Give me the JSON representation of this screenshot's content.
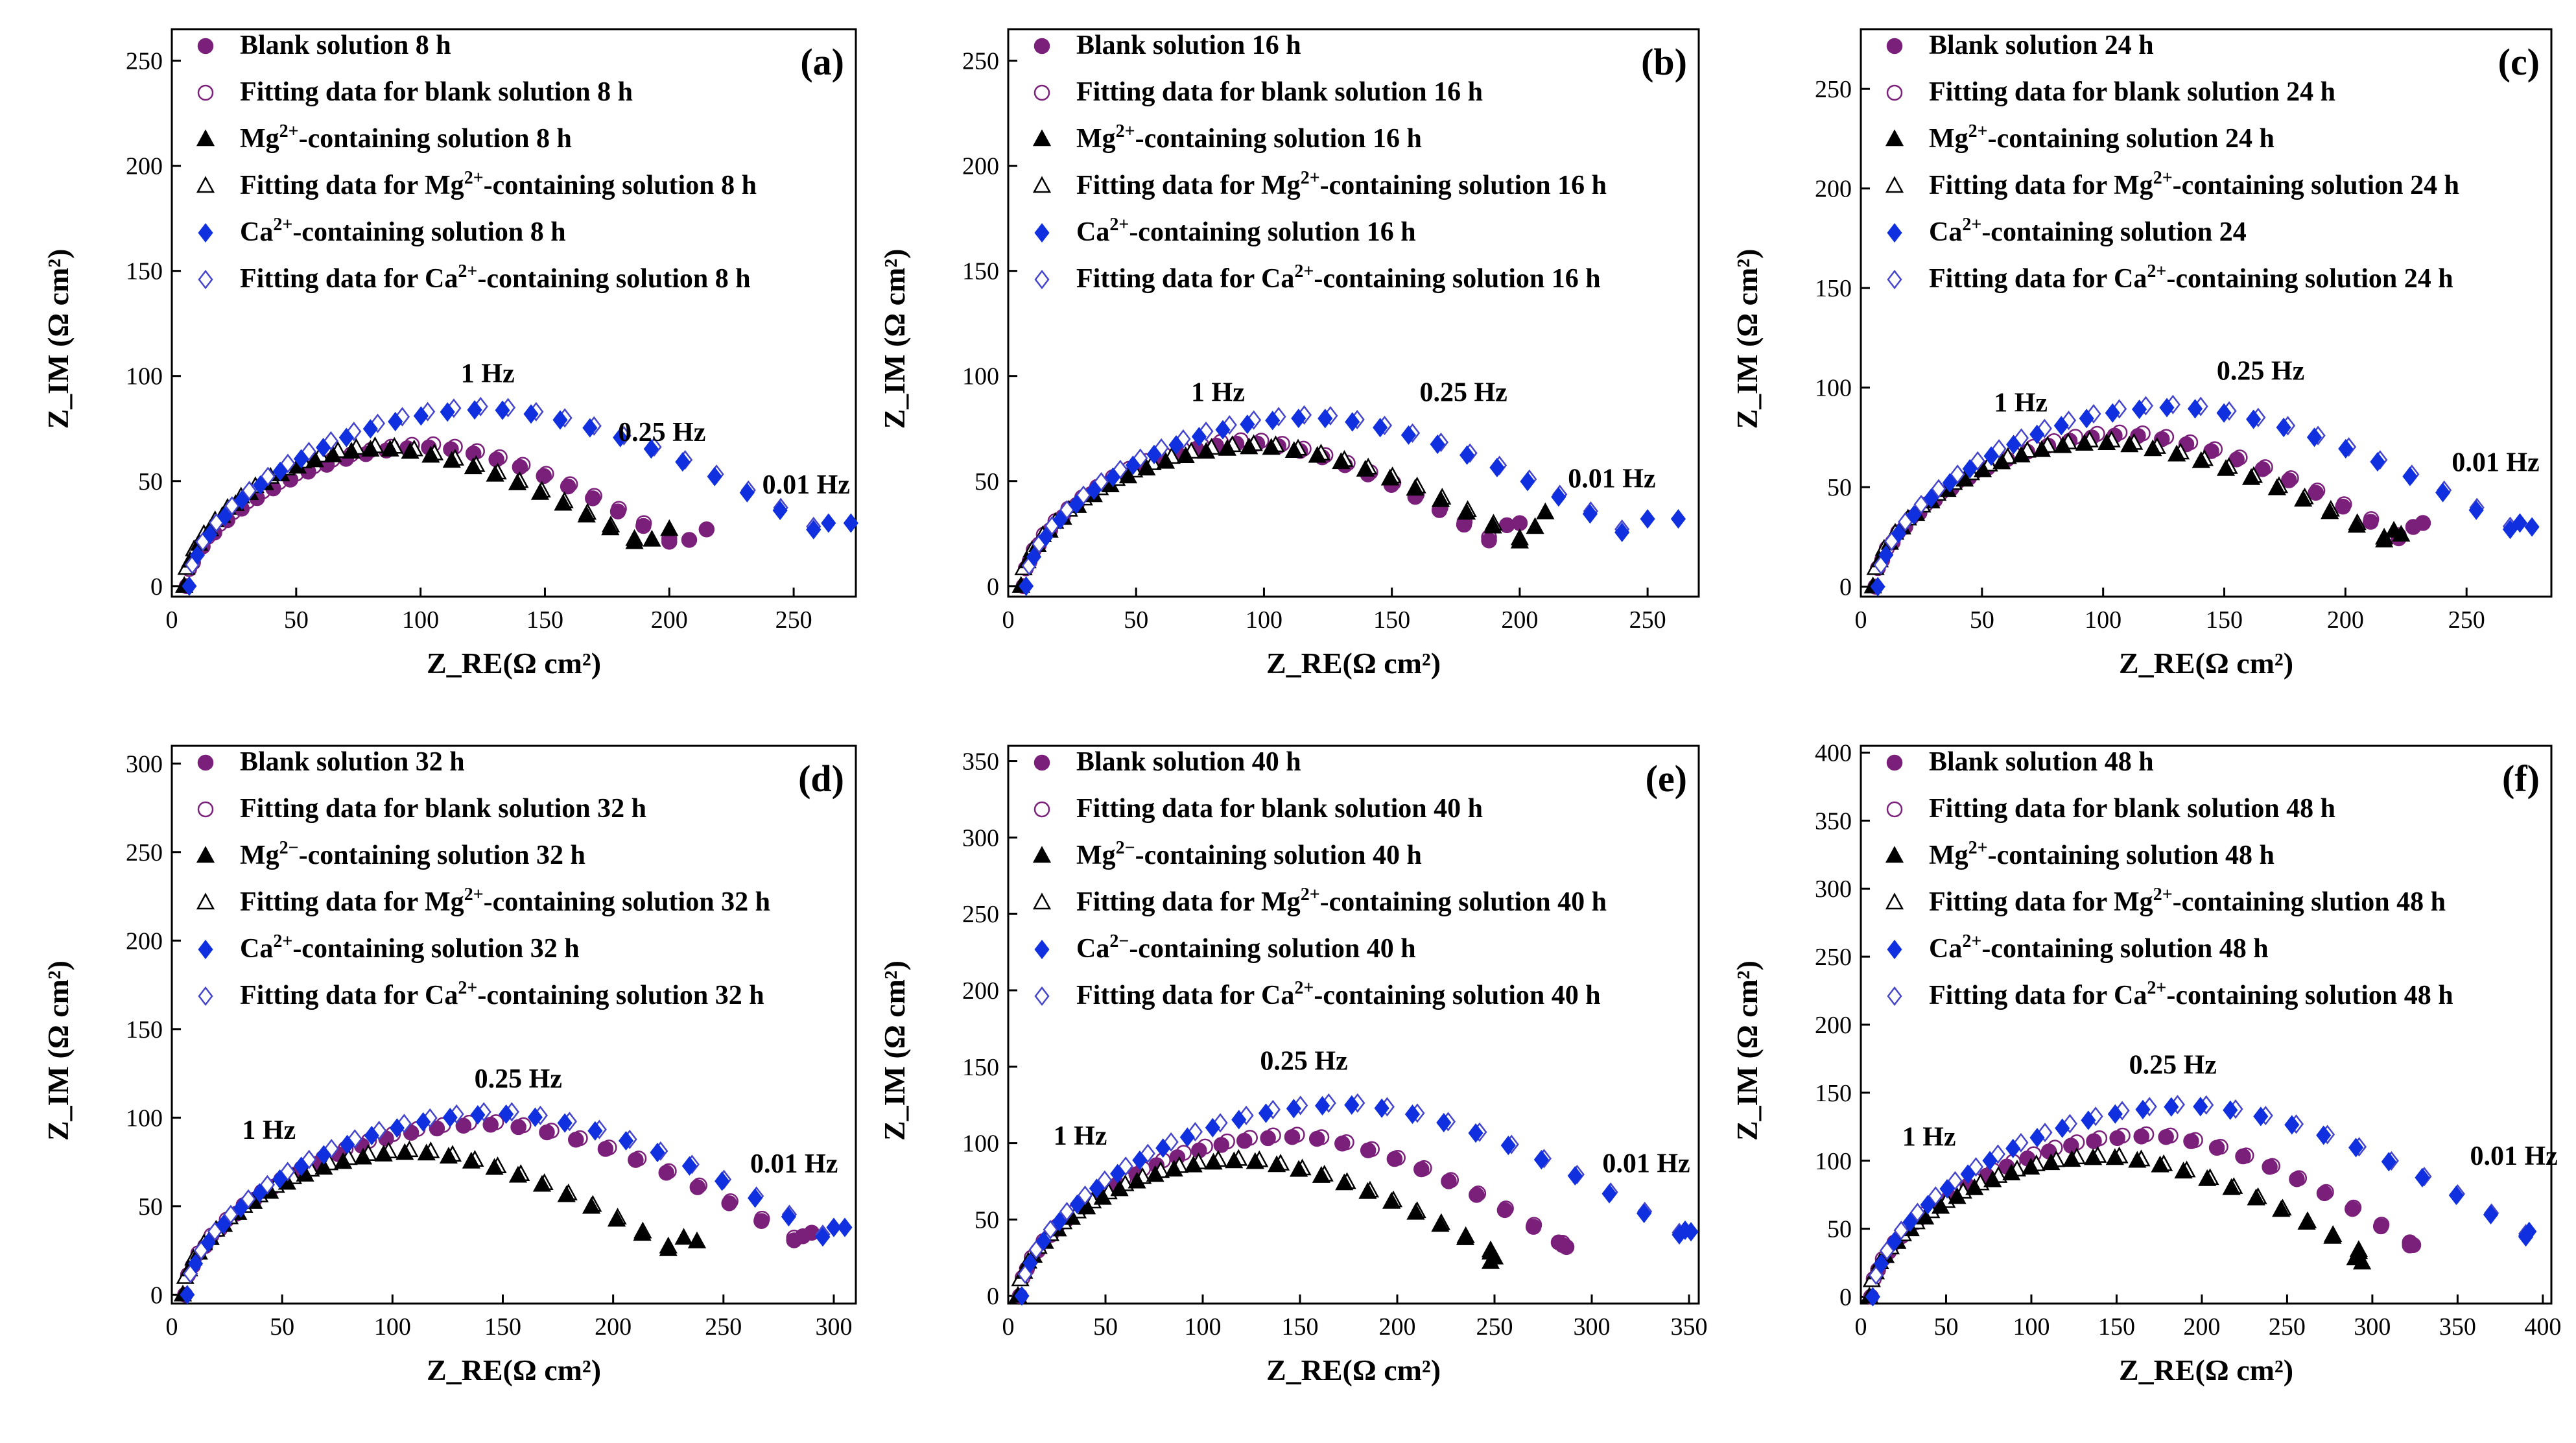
{
  "colors": {
    "blank": "#7a1f7a",
    "mg": "#000000",
    "ca": "#1030e0"
  },
  "chart_data": [
    {
      "type": "scatter",
      "panel_label": "(a)",
      "xlabel": "Z_RE(Ω cm²)",
      "ylabel": "Z_IM (Ω cm²)",
      "xlim": [
        0,
        275
      ],
      "ylim": [
        -5,
        265
      ],
      "xticks": [
        0,
        50,
        100,
        150,
        200,
        250
      ],
      "yticks": [
        0,
        50,
        100,
        150,
        200,
        250
      ],
      "legend": [
        {
          "label": "Blank solution 8 h"
        },
        {
          "label": "Fitting data for blank solution 8 h"
        },
        {
          "label": "Mg²⁺-containing solution 8 h"
        },
        {
          "label": "Fitting data for Mg²⁺-containing solution 8 h"
        },
        {
          "label": "Ca²⁺-containing solution 8 h"
        },
        {
          "label": "Fitting data for Ca²⁺-containing solution 8 h"
        }
      ],
      "annotations": [
        {
          "text": "1 Hz",
          "x": 127,
          "y": 97
        },
        {
          "text": "0.25 Hz",
          "x": 197,
          "y": 69
        },
        {
          "text": "0.01 Hz",
          "x": 255,
          "y": 44
        }
      ],
      "series": [
        {
          "style": "blank",
          "params": {
            "x0": 6,
            "x1": 200,
            "h": 66,
            "mid": 104
          },
          "tail": [
            [
              208,
              22
            ],
            [
              215,
              27
            ]
          ]
        },
        {
          "style": "mg",
          "params": {
            "x0": 5,
            "x1": 186,
            "h": 65,
            "mid": 85
          },
          "tail": [
            [
              193,
              22
            ],
            [
              200,
              27
            ]
          ]
        },
        {
          "style": "ca",
          "params": {
            "x0": 7,
            "x1": 258,
            "h": 84,
            "mid": 128
          },
          "tail": [
            [
              264,
              30
            ],
            [
              273,
              30
            ]
          ]
        }
      ]
    },
    {
      "type": "scatter",
      "panel_label": "(b)",
      "xlabel": "Z_RE(Ω cm²)",
      "ylabel": "Z_IM (Ω cm²)",
      "xlim": [
        0,
        270
      ],
      "ylim": [
        -5,
        265
      ],
      "xticks": [
        0,
        50,
        100,
        150,
        200,
        250
      ],
      "yticks": [
        0,
        50,
        100,
        150,
        200,
        250
      ],
      "legend": [
        {
          "label": "Blank solution 16 h"
        },
        {
          "label": "Fitting data for blank solution 16 h"
        },
        {
          "label": "Mg²⁺-containing solution 16 h"
        },
        {
          "label": "Fitting data for Mg²⁺-containing solution 16 h"
        },
        {
          "label": "Ca²⁺-containing solution 16 h"
        },
        {
          "label": "Fitting data for Ca²⁺-containing solution 16 h"
        }
      ],
      "annotations": [
        {
          "text": "1 Hz",
          "x": 82,
          "y": 88
        },
        {
          "text": "0.25 Hz",
          "x": 178,
          "y": 88
        },
        {
          "text": "0.01 Hz",
          "x": 236,
          "y": 47
        }
      ],
      "series": [
        {
          "style": "blank",
          "params": {
            "x0": 6,
            "x1": 188,
            "h": 68,
            "mid": 95
          },
          "tail": [
            [
              195,
              29
            ],
            [
              200,
              30
            ]
          ]
        },
        {
          "style": "mg",
          "params": {
            "x0": 5,
            "x1": 200,
            "h": 66,
            "mid": 98
          },
          "tail": [
            [
              206,
              28
            ],
            [
              210,
              35
            ]
          ]
        },
        {
          "style": "ca",
          "params": {
            "x0": 7,
            "x1": 240,
            "h": 80,
            "mid": 120
          },
          "tail": [
            [
              250,
              32
            ],
            [
              262,
              32
            ]
          ]
        }
      ]
    },
    {
      "type": "scatter",
      "panel_label": "(c)",
      "xlabel": "Z_RE(Ω cm²)",
      "ylabel": "Z_IM (Ω cm²)",
      "xlim": [
        0,
        285
      ],
      "ylim": [
        -5,
        280
      ],
      "xticks": [
        0,
        50,
        100,
        150,
        200,
        250
      ],
      "yticks": [
        0,
        50,
        100,
        150,
        200,
        250
      ],
      "legend": [
        {
          "label": "Blank solution 24 h"
        },
        {
          "label": "Fitting data for blank solution 24 h"
        },
        {
          "label": "Mg²⁺-containing solution 24 h"
        },
        {
          "label": "Fitting data for Mg²⁺-containing solution 24 h"
        },
        {
          "label": "Ca²⁺-containing solution 24"
        },
        {
          "label": "Fitting data for Ca²⁺-containing solution 24 h"
        }
      ],
      "annotations": [
        {
          "text": "1 Hz",
          "x": 66,
          "y": 88
        },
        {
          "text": "0.25 Hz",
          "x": 165,
          "y": 104
        },
        {
          "text": "0.01 Hz",
          "x": 262,
          "y": 58
        }
      ],
      "series": [
        {
          "style": "blank",
          "params": {
            "x0": 6,
            "x1": 222,
            "h": 76,
            "mid": 110
          },
          "tail": [
            [
              228,
              30
            ],
            [
              232,
              32
            ]
          ]
        },
        {
          "style": "mg",
          "params": {
            "x0": 5,
            "x1": 216,
            "h": 72,
            "mid": 100
          },
          "tail": [
            [
              220,
              28
            ],
            [
              223,
              26
            ]
          ]
        },
        {
          "style": "ca",
          "params": {
            "x0": 7,
            "x1": 268,
            "h": 90,
            "mid": 130
          },
          "tail": [
            [
              272,
              32
            ],
            [
              277,
              30
            ]
          ]
        }
      ]
    },
    {
      "type": "scatter",
      "panel_label": "(d)",
      "xlabel": "Z_RE(Ω cm²)",
      "ylabel": "Z_IM (Ω cm²)",
      "xlim": [
        0,
        310
      ],
      "ylim": [
        -5,
        310
      ],
      "xticks": [
        0,
        50,
        100,
        150,
        200,
        250,
        300
      ],
      "yticks": [
        0,
        50,
        100,
        150,
        200,
        250,
        300
      ],
      "legend": [
        {
          "label": "Blank solution 32 h"
        },
        {
          "label": "Fitting data for blank solution 32 h"
        },
        {
          "label": "Mg²⁻-containing solution 32 h"
        },
        {
          "label": "Fitting data for Mg²⁺-containing solution 32 h"
        },
        {
          "label": "Ca²⁺-containing solution 32 h"
        },
        {
          "label": "Fitting data for Ca²⁺-containing solution 32 h"
        }
      ],
      "annotations": [
        {
          "text": "1 Hz",
          "x": 44,
          "y": 88
        },
        {
          "text": "0.25 Hz",
          "x": 157,
          "y": 117
        },
        {
          "text": "0.01 Hz",
          "x": 282,
          "y": 69
        }
      ],
      "series": [
        {
          "style": "blank",
          "params": {
            "x0": 6,
            "x1": 282,
            "h": 96,
            "mid": 145
          },
          "tail": [
            [
              286,
              33
            ],
            [
              290,
              35
            ]
          ]
        },
        {
          "style": "mg",
          "params": {
            "x0": 5,
            "x1": 225,
            "h": 80,
            "mid": 110
          },
          "tail": [
            [
              232,
              32
            ],
            [
              238,
              30
            ]
          ]
        },
        {
          "style": "ca",
          "params": {
            "x0": 7,
            "x1": 295,
            "h": 102,
            "mid": 150
          },
          "tail": [
            [
              300,
              38
            ],
            [
              305,
              38
            ]
          ]
        }
      ]
    },
    {
      "type": "scatter",
      "panel_label": "(e)",
      "xlabel": "Z_RE(Ω cm²)",
      "ylabel": "Z_IM (Ω cm²)",
      "xlim": [
        0,
        355
      ],
      "ylim": [
        -5,
        360
      ],
      "xticks": [
        0,
        50,
        100,
        150,
        200,
        250,
        300,
        350
      ],
      "yticks": [
        0,
        50,
        100,
        150,
        200,
        250,
        300,
        350
      ],
      "legend": [
        {
          "label": "Blank solution 40 h"
        },
        {
          "label": "Fitting data for blank solution 40 h"
        },
        {
          "label": "Mg²⁻-containing solution 40 h"
        },
        {
          "label": "Fitting data for Mg²⁺-containing solution 40 h"
        },
        {
          "label": "Ca²⁻-containing solution 40 h"
        },
        {
          "label": "Fitting data for Ca²⁺-containing solution 40 h"
        }
      ],
      "annotations": [
        {
          "text": "1 Hz",
          "x": 37,
          "y": 99
        },
        {
          "text": "0.25 Hz",
          "x": 152,
          "y": 148
        },
        {
          "text": "0.01 Hz",
          "x": 328,
          "y": 81
        }
      ],
      "series": [
        {
          "style": "blank",
          "params": {
            "x0": 6,
            "x1": 285,
            "h": 104,
            "mid": 148
          },
          "tail": [
            [
              287,
              32
            ],
            [
              283,
              35
            ]
          ]
        },
        {
          "style": "mg",
          "params": {
            "x0": 5,
            "x1": 248,
            "h": 88,
            "mid": 120
          },
          "tail": [
            [
              250,
              25
            ],
            [
              248,
              22
            ]
          ]
        },
        {
          "style": "ca",
          "params": {
            "x0": 7,
            "x1": 345,
            "h": 125,
            "mid": 175
          },
          "tail": [
            [
              348,
              43
            ],
            [
              351,
              42
            ]
          ]
        }
      ]
    },
    {
      "type": "scatter",
      "panel_label": "(f)",
      "xlabel": "Z_RE(Ω cm²)",
      "ylabel": "Z_IM (Ω cm²)",
      "xlim": [
        0,
        405
      ],
      "ylim": [
        -5,
        405
      ],
      "xticks": [
        0,
        50,
        100,
        150,
        200,
        250,
        300,
        350,
        400
      ],
      "yticks": [
        0,
        50,
        100,
        150,
        200,
        250,
        300,
        350,
        400
      ],
      "legend": [
        {
          "label": "Blank solution 48 h"
        },
        {
          "label": "Fitting data for blank solution 48 h"
        },
        {
          "label": "Mg²⁺-containing solution 48 h"
        },
        {
          "label": "Fitting data for Mg²⁺-containing slution 48 h"
        },
        {
          "label": "Ca²⁺-containing solution 48 h"
        },
        {
          "label": "Fitting data for Ca²⁺-containing solution 48 h"
        }
      ],
      "annotations": [
        {
          "text": "1 Hz",
          "x": 40,
          "y": 111
        },
        {
          "text": "0.25 Hz",
          "x": 183,
          "y": 164
        },
        {
          "text": "0.01 Hz",
          "x": 383,
          "y": 97
        }
      ],
      "series": [
        {
          "style": "blank",
          "params": {
            "x0": 6,
            "x1": 322,
            "h": 118,
            "mid": 172
          },
          "tail": [
            [
              324,
              38
            ],
            [
              322,
              40
            ]
          ]
        },
        {
          "style": "mg",
          "params": {
            "x0": 5,
            "x1": 292,
            "h": 102,
            "mid": 145
          },
          "tail": [
            [
              294,
              25
            ],
            [
              290,
              28
            ]
          ]
        },
        {
          "style": "ca",
          "params": {
            "x0": 7,
            "x1": 390,
            "h": 140,
            "mid": 195
          },
          "tail": [
            [
              392,
              48
            ],
            [
              390,
              44
            ]
          ]
        }
      ]
    }
  ]
}
